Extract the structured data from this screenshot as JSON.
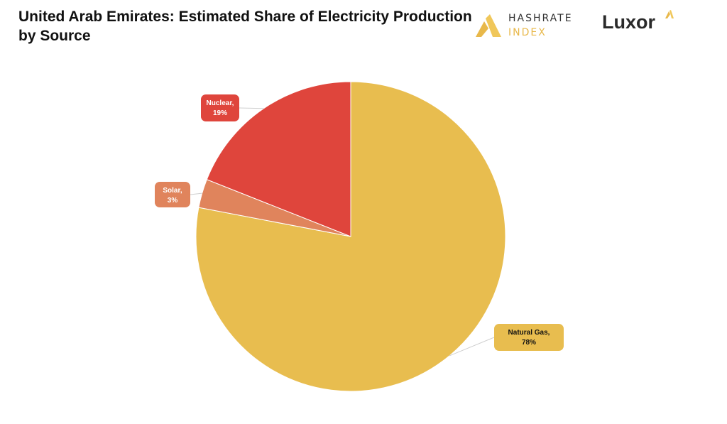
{
  "header": {
    "title": "United Arab Emirates: Estimated Share of Electricity Production by Source"
  },
  "logos": {
    "hashrate": {
      "line1": "HASHRATE",
      "line2": "INDEX"
    },
    "luxor": {
      "word": "Luxor"
    }
  },
  "chart_data": {
    "type": "pie",
    "title": "United Arab Emirates: Estimated Share of Electricity Production by Source",
    "slices": [
      {
        "label": "Natural Gas",
        "value": 78,
        "display": "78%",
        "color": "#e8bd4f",
        "label_color": "#e8bd4f",
        "text_color": "#111111"
      },
      {
        "label": "Solar",
        "value": 3,
        "display": "3%",
        "color": "#e0845c",
        "label_color": "#e0845c",
        "text_color": "#ffffff"
      },
      {
        "label": "Nuclear",
        "value": 19,
        "display": "19%",
        "color": "#df453c",
        "label_color": "#df453c",
        "text_color": "#ffffff"
      }
    ],
    "start_angle": "12 o'clock",
    "direction": "clockwise",
    "legend": "none"
  }
}
